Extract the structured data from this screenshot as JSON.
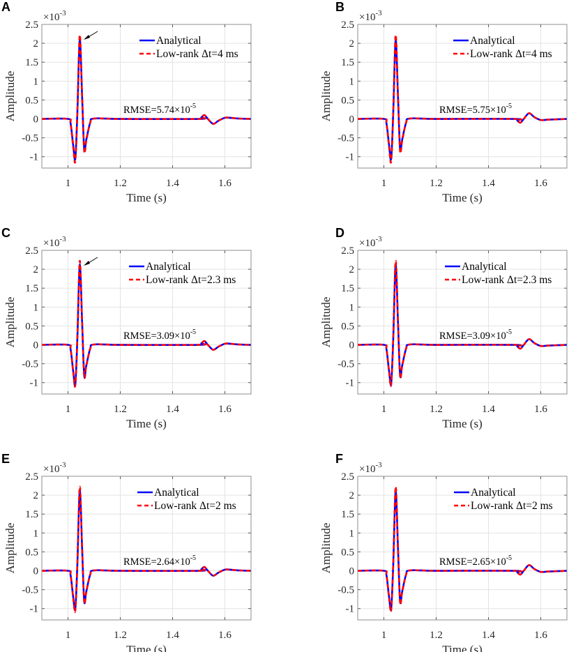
{
  "chart_data": [
    {
      "panel": "A",
      "type": "line",
      "xlabel": "Time (s)",
      "ylabel": "Amplitude",
      "y_multiplier": "×10",
      "y_multiplier_exp": "-3",
      "xlim": [
        0.9,
        1.7
      ],
      "ylim": [
        -1.3,
        2.5
      ],
      "grid": true,
      "legend": "top-right",
      "xticks": [
        {
          "v": 1,
          "t": "1"
        },
        {
          "v": 1.2,
          "t": "1.2"
        },
        {
          "v": 1.4,
          "t": "1.4"
        },
        {
          "v": 1.6,
          "t": "1.6"
        }
      ],
      "yticks": [
        {
          "v": -1,
          "t": "-1"
        },
        {
          "v": -0.5,
          "t": "-0.5"
        },
        {
          "v": 0,
          "t": "0"
        },
        {
          "v": 0.5,
          "t": "0.5"
        },
        {
          "v": 1,
          "t": "1"
        },
        {
          "v": 1.5,
          "t": "1.5"
        },
        {
          "v": 2,
          "t": "2"
        },
        {
          "v": 2.5,
          "t": "2.5"
        }
      ],
      "annotation": "RMSE=5.74×10",
      "annotation_exp": "-5",
      "arrow": true,
      "x": [
        0.9,
        1.0,
        1.01,
        1.02,
        1.028,
        1.036,
        1.045,
        1.054,
        1.062,
        1.07,
        1.085,
        1.1,
        1.2,
        1.5,
        1.51,
        1.522,
        1.535,
        1.555,
        1.575,
        1.6,
        1.62,
        1.65,
        1.7
      ],
      "series": [
        {
          "name": "Analytical",
          "color": "#0000ff",
          "style": "solid",
          "values": [
            0,
            0,
            -0.12,
            -0.7,
            -1.05,
            0.2,
            2.1,
            0.6,
            -0.8,
            -0.55,
            -0.1,
            0.01,
            0,
            0,
            0.04,
            0.1,
            0,
            -0.13,
            -0.05,
            0.03,
            0.03,
            0.01,
            0
          ]
        },
        {
          "name": "Low-rank Δt=4 ms",
          "color": "#ff0000",
          "style": "dashed",
          "values": [
            0,
            0,
            -0.13,
            -0.75,
            -1.12,
            0.2,
            2.22,
            0.6,
            -0.85,
            -0.58,
            -0.1,
            0.01,
            0,
            0,
            0.04,
            0.1,
            0,
            -0.13,
            -0.05,
            0.03,
            0.03,
            0.01,
            0
          ]
        }
      ]
    },
    {
      "panel": "B",
      "type": "line",
      "xlabel": "Time (s)",
      "ylabel": "Amplitude",
      "y_multiplier": "×10",
      "y_multiplier_exp": "-3",
      "xlim": [
        0.9,
        1.7
      ],
      "ylim": [
        -1.3,
        2.5
      ],
      "grid": true,
      "legend": "top-right",
      "xticks": [
        {
          "v": 1,
          "t": "1"
        },
        {
          "v": 1.2,
          "t": "1.2"
        },
        {
          "v": 1.4,
          "t": "1.4"
        },
        {
          "v": 1.6,
          "t": "1.6"
        }
      ],
      "yticks": [
        {
          "v": -1,
          "t": "-1"
        },
        {
          "v": -0.5,
          "t": "-0.5"
        },
        {
          "v": 0,
          "t": "0"
        },
        {
          "v": 0.5,
          "t": "0.5"
        },
        {
          "v": 1,
          "t": "1"
        },
        {
          "v": 1.5,
          "t": "1.5"
        },
        {
          "v": 2,
          "t": "2"
        },
        {
          "v": 2.5,
          "t": "2.5"
        }
      ],
      "annotation": "RMSE=5.75×10",
      "annotation_exp": "-5",
      "arrow": false,
      "x": [
        0.9,
        1.0,
        1.01,
        1.02,
        1.028,
        1.036,
        1.045,
        1.054,
        1.062,
        1.07,
        1.085,
        1.1,
        1.2,
        1.5,
        1.51,
        1.522,
        1.535,
        1.555,
        1.575,
        1.6,
        1.63,
        1.7
      ],
      "series": [
        {
          "name": "Analytical",
          "color": "#0000ff",
          "style": "solid",
          "values": [
            0,
            0,
            -0.12,
            -0.7,
            -1.05,
            0.2,
            2.08,
            0.6,
            -0.8,
            -0.55,
            -0.1,
            0.01,
            0,
            0,
            -0.04,
            -0.1,
            0,
            0.15,
            0.05,
            -0.03,
            -0.02,
            0
          ]
        },
        {
          "name": "Low-rank Δt=4 ms",
          "color": "#ff0000",
          "style": "dashed",
          "values": [
            0,
            0,
            -0.13,
            -0.75,
            -1.12,
            0.2,
            2.22,
            0.6,
            -0.85,
            -0.58,
            -0.1,
            0.01,
            0,
            0,
            -0.04,
            -0.1,
            0,
            0.15,
            0.05,
            -0.03,
            -0.02,
            0
          ]
        }
      ]
    },
    {
      "panel": "C",
      "type": "line",
      "xlabel": "Time (s)",
      "ylabel": "Amplitude",
      "y_multiplier": "×10",
      "y_multiplier_exp": "-3",
      "xlim": [
        0.9,
        1.7
      ],
      "ylim": [
        -1.3,
        2.5
      ],
      "grid": true,
      "legend": "top-right",
      "xticks": [
        {
          "v": 1,
          "t": "1"
        },
        {
          "v": 1.2,
          "t": "1.2"
        },
        {
          "v": 1.4,
          "t": "1.4"
        },
        {
          "v": 1.6,
          "t": "1.6"
        }
      ],
      "yticks": [
        {
          "v": -1,
          "t": "-1"
        },
        {
          "v": -0.5,
          "t": "-0.5"
        },
        {
          "v": 0,
          "t": "0"
        },
        {
          "v": 0.5,
          "t": "0.5"
        },
        {
          "v": 1,
          "t": "1"
        },
        {
          "v": 1.5,
          "t": "1.5"
        },
        {
          "v": 2,
          "t": "2"
        },
        {
          "v": 2.5,
          "t": "2.5"
        }
      ],
      "annotation": "RMSE=3.09×10",
      "annotation_exp": "-5",
      "arrow": true,
      "x": [
        0.9,
        1.0,
        1.01,
        1.02,
        1.028,
        1.036,
        1.045,
        1.054,
        1.062,
        1.07,
        1.085,
        1.1,
        1.2,
        1.5,
        1.51,
        1.522,
        1.535,
        1.555,
        1.575,
        1.6,
        1.62,
        1.65,
        1.7
      ],
      "series": [
        {
          "name": "Analytical",
          "color": "#0000ff",
          "style": "solid",
          "values": [
            0,
            0,
            -0.12,
            -0.7,
            -1.05,
            0.2,
            2.12,
            0.6,
            -0.8,
            -0.55,
            -0.1,
            0.01,
            0,
            0,
            0.04,
            0.1,
            0,
            -0.13,
            -0.05,
            0.03,
            0.03,
            0.01,
            0
          ]
        },
        {
          "name": "Low-rank Δt=2.3 ms",
          "color": "#ff0000",
          "style": "dashed",
          "values": [
            0,
            0,
            -0.12,
            -0.72,
            -1.07,
            0.2,
            2.22,
            0.6,
            -0.82,
            -0.56,
            -0.1,
            0.01,
            0,
            0,
            0.04,
            0.1,
            0,
            -0.13,
            -0.05,
            0.03,
            0.03,
            0.01,
            0
          ]
        }
      ]
    },
    {
      "panel": "D",
      "type": "line",
      "xlabel": "Time (s)",
      "ylabel": "Amplitude",
      "y_multiplier": "×10",
      "y_multiplier_exp": "-3",
      "xlim": [
        0.9,
        1.7
      ],
      "ylim": [
        -1.3,
        2.5
      ],
      "grid": true,
      "legend": "top-right",
      "xticks": [
        {
          "v": 1,
          "t": "1"
        },
        {
          "v": 1.2,
          "t": "1.2"
        },
        {
          "v": 1.4,
          "t": "1.4"
        },
        {
          "v": 1.6,
          "t": "1.6"
        }
      ],
      "yticks": [
        {
          "v": -1,
          "t": "-1"
        },
        {
          "v": -0.5,
          "t": "-0.5"
        },
        {
          "v": 0,
          "t": "0"
        },
        {
          "v": 0.5,
          "t": "0.5"
        },
        {
          "v": 1,
          "t": "1"
        },
        {
          "v": 1.5,
          "t": "1.5"
        },
        {
          "v": 2,
          "t": "2"
        },
        {
          "v": 2.5,
          "t": "2.5"
        }
      ],
      "annotation": "RMSE=3.09×10",
      "annotation_exp": "-5",
      "arrow": false,
      "x": [
        0.9,
        1.0,
        1.01,
        1.02,
        1.028,
        1.036,
        1.045,
        1.054,
        1.062,
        1.07,
        1.085,
        1.1,
        1.2,
        1.5,
        1.51,
        1.522,
        1.535,
        1.555,
        1.575,
        1.6,
        1.63,
        1.7
      ],
      "series": [
        {
          "name": "Analytical",
          "color": "#0000ff",
          "style": "solid",
          "values": [
            0,
            0,
            -0.12,
            -0.7,
            -1.02,
            0.2,
            2.12,
            0.6,
            -0.8,
            -0.55,
            -0.1,
            0.01,
            0,
            0,
            -0.04,
            -0.1,
            0,
            0.15,
            0.05,
            -0.03,
            -0.02,
            0
          ]
        },
        {
          "name": "Low-rank Δt=2.3 ms",
          "color": "#ff0000",
          "style": "dashed",
          "values": [
            0,
            0,
            -0.12,
            -0.72,
            -1.05,
            0.2,
            2.22,
            0.6,
            -0.83,
            -0.56,
            -0.1,
            0.01,
            0,
            0,
            -0.04,
            -0.1,
            0,
            0.15,
            0.05,
            -0.03,
            -0.02,
            0
          ]
        }
      ]
    },
    {
      "panel": "E",
      "type": "line",
      "xlabel": "Time (s)",
      "ylabel": "Amplitude",
      "y_multiplier": "×10",
      "y_multiplier_exp": "-3",
      "xlim": [
        0.9,
        1.7
      ],
      "ylim": [
        -1.3,
        2.5
      ],
      "grid": true,
      "legend": "top-right",
      "xticks": [
        {
          "v": 1,
          "t": "1"
        },
        {
          "v": 1.2,
          "t": "1.2"
        },
        {
          "v": 1.4,
          "t": "1.4"
        },
        {
          "v": 1.6,
          "t": "1.6"
        }
      ],
      "yticks": [
        {
          "v": -1,
          "t": "-1"
        },
        {
          "v": -0.5,
          "t": "-0.5"
        },
        {
          "v": 0,
          "t": "0"
        },
        {
          "v": 0.5,
          "t": "0.5"
        },
        {
          "v": 1,
          "t": "1"
        },
        {
          "v": 1.5,
          "t": "1.5"
        },
        {
          "v": 2,
          "t": "2"
        },
        {
          "v": 2.5,
          "t": "2.5"
        }
      ],
      "annotation": "RMSE=2.64×10",
      "annotation_exp": "-5",
      "arrow": false,
      "x": [
        0.9,
        1.0,
        1.01,
        1.02,
        1.028,
        1.036,
        1.045,
        1.054,
        1.062,
        1.07,
        1.085,
        1.1,
        1.2,
        1.5,
        1.51,
        1.522,
        1.535,
        1.555,
        1.575,
        1.6,
        1.62,
        1.65,
        1.7
      ],
      "series": [
        {
          "name": "Analytical",
          "color": "#0000ff",
          "style": "solid",
          "values": [
            0,
            0,
            -0.12,
            -0.7,
            -1.0,
            0.2,
            2.12,
            0.6,
            -0.8,
            -0.55,
            -0.1,
            0.01,
            0,
            0,
            0.04,
            0.1,
            0,
            -0.13,
            -0.05,
            0.03,
            0.03,
            0.01,
            0
          ]
        },
        {
          "name": "Low-rank Δt=2 ms",
          "color": "#ff0000",
          "style": "dashed",
          "values": [
            0,
            0,
            -0.12,
            -0.72,
            -1.05,
            0.2,
            2.22,
            0.6,
            -0.82,
            -0.56,
            -0.1,
            0.01,
            0,
            0,
            0.04,
            0.1,
            0,
            -0.13,
            -0.05,
            0.03,
            0.03,
            0.01,
            0
          ]
        }
      ]
    },
    {
      "panel": "F",
      "type": "line",
      "xlabel": "Time (s)",
      "ylabel": "Amplitude",
      "y_multiplier": "×10",
      "y_multiplier_exp": "-3",
      "xlim": [
        0.9,
        1.7
      ],
      "ylim": [
        -1.3,
        2.5
      ],
      "grid": true,
      "legend": "top-right",
      "xticks": [
        {
          "v": 1,
          "t": "1"
        },
        {
          "v": 1.2,
          "t": "1.2"
        },
        {
          "v": 1.4,
          "t": "1.4"
        },
        {
          "v": 1.6,
          "t": "1.6"
        }
      ],
      "yticks": [
        {
          "v": -1,
          "t": "-1"
        },
        {
          "v": -0.5,
          "t": "-0.5"
        },
        {
          "v": 0,
          "t": "0"
        },
        {
          "v": 0.5,
          "t": "0.5"
        },
        {
          "v": 1,
          "t": "1"
        },
        {
          "v": 1.5,
          "t": "1.5"
        },
        {
          "v": 2,
          "t": "2"
        },
        {
          "v": 2.5,
          "t": "2.5"
        }
      ],
      "annotation": "RMSE=2.65×10",
      "annotation_exp": "-5",
      "arrow": false,
      "x": [
        0.9,
        1.0,
        1.01,
        1.02,
        1.028,
        1.036,
        1.045,
        1.054,
        1.062,
        1.07,
        1.085,
        1.1,
        1.2,
        1.5,
        1.51,
        1.522,
        1.535,
        1.555,
        1.575,
        1.6,
        1.63,
        1.7
      ],
      "series": [
        {
          "name": "Analytical",
          "color": "#0000ff",
          "style": "solid",
          "values": [
            0,
            0,
            -0.12,
            -0.7,
            -1.0,
            0.2,
            2.1,
            0.6,
            -0.8,
            -0.55,
            -0.1,
            0.01,
            0,
            0,
            -0.04,
            -0.1,
            0,
            0.15,
            0.05,
            -0.03,
            -0.02,
            0
          ]
        },
        {
          "name": "Low-rank Δt=2 ms",
          "color": "#ff0000",
          "style": "dashed",
          "values": [
            0,
            0,
            -0.12,
            -0.72,
            -1.04,
            0.2,
            2.22,
            0.6,
            -0.84,
            -0.57,
            -0.1,
            0.01,
            0,
            0,
            -0.04,
            -0.1,
            0,
            0.15,
            0.05,
            -0.03,
            -0.02,
            0
          ]
        }
      ]
    }
  ]
}
